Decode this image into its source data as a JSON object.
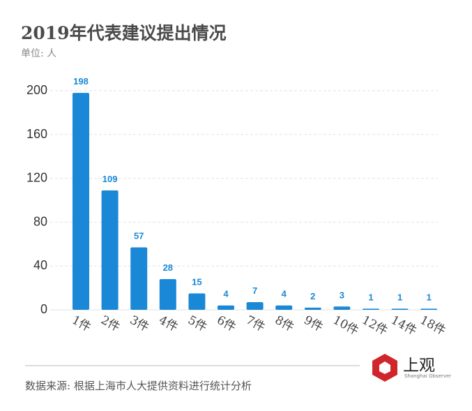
{
  "title": "2019年代表建议提出情况",
  "unit": "单位: 人",
  "source": "数据来源: 根据上海市人大提供资料进行统计分析",
  "logo": {
    "text": "上观",
    "subtitle": "Shanghai Observer"
  },
  "colors": {
    "bar": "#1a88d6",
    "label": "#1a88d6",
    "logo": "#d0262b"
  },
  "chart_data": {
    "type": "bar",
    "categories": [
      "1件",
      "2件",
      "3件",
      "4件",
      "5件",
      "6件",
      "7件",
      "8件",
      "9件",
      "10件",
      "12件",
      "14件",
      "18件"
    ],
    "values": [
      198,
      109,
      57,
      28,
      15,
      4,
      7,
      4,
      2,
      3,
      1,
      1,
      1
    ],
    "yticks": [
      0,
      40,
      80,
      120,
      160,
      200
    ],
    "ylim": [
      0,
      200
    ],
    "grid": true
  }
}
